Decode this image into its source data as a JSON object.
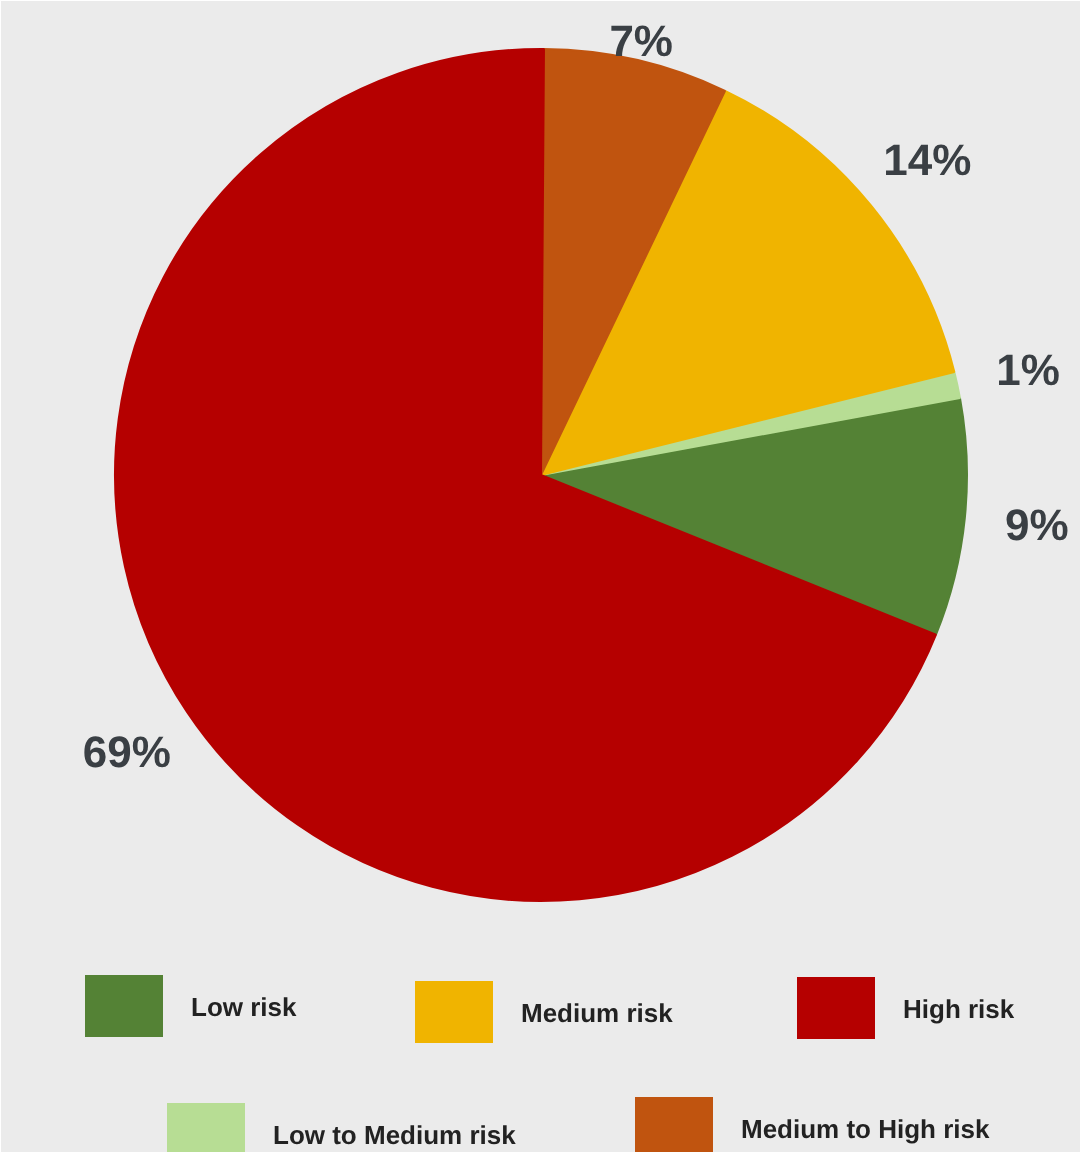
{
  "chart_data": {
    "type": "pie",
    "categories": [
      "Low risk",
      "Low to Medium risk",
      "Medium risk",
      "Medium to High risk",
      "High risk"
    ],
    "values": [
      9,
      1,
      14,
      7,
      69
    ],
    "colors": [
      "#548235",
      "#b7dd94",
      "#f0b400",
      "#c0540f",
      "#b50000"
    ],
    "value_labels": [
      "9%",
      "1%",
      "14%",
      "7%",
      "69%"
    ],
    "legend": "bottom"
  }
}
